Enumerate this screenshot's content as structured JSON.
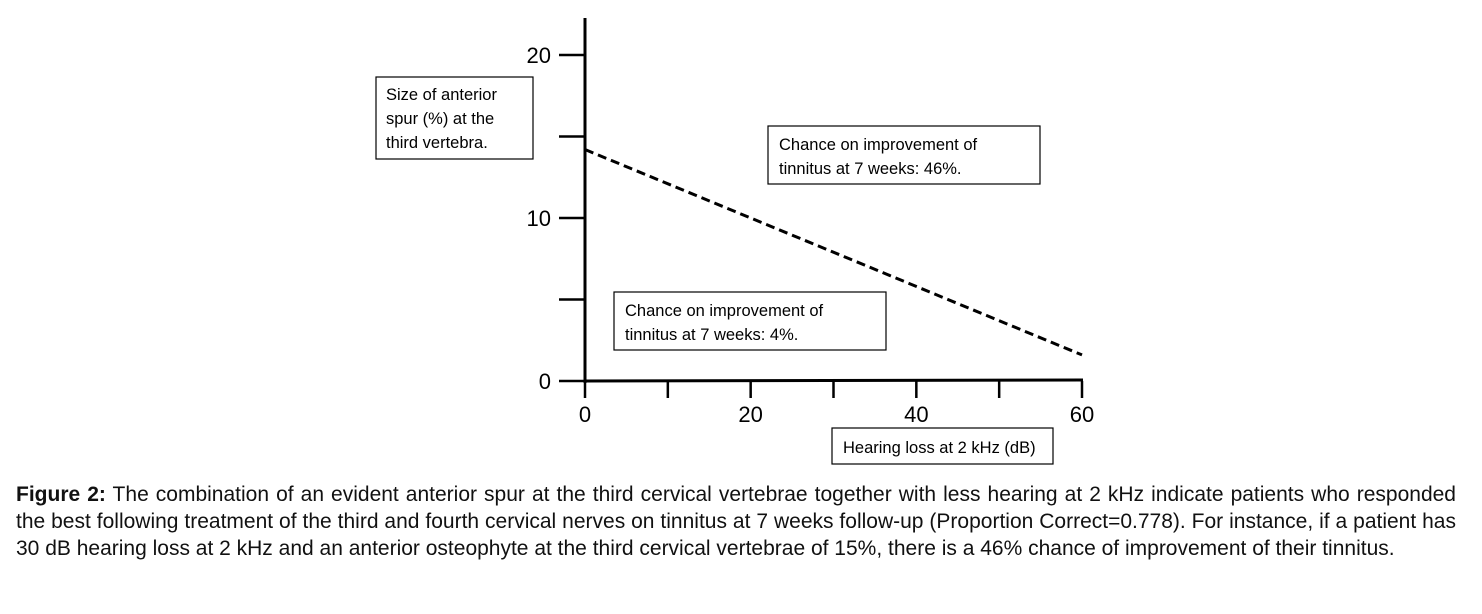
{
  "chart_data": {
    "type": "line",
    "xlabel": "Hearing loss at 2 kHz (dB)",
    "ylabel": "Size of anterior spur (%) at the third vertebra.",
    "xlim": [
      0,
      60
    ],
    "ylim": [
      0,
      20
    ],
    "x_ticks": [
      0,
      10,
      20,
      30,
      40,
      50,
      60
    ],
    "x_tick_labels": [
      "0",
      "",
      "20",
      "",
      "40",
      "",
      "60"
    ],
    "y_ticks": [
      0,
      5,
      10,
      15,
      20
    ],
    "y_tick_labels": [
      "0",
      "",
      "10",
      "",
      "20"
    ],
    "grid": false,
    "series": [
      {
        "style": "dashed",
        "x": [
          0,
          60
        ],
        "y": [
          14.2,
          1.6
        ]
      }
    ],
    "annotations": {
      "upper_region": [
        "Chance on improvement of",
        "tinnitus at 7 weeks: 46%."
      ],
      "lower_region": [
        "Chance on improvement of",
        "tinnitus at 7 weeks: 4%."
      ],
      "ylabel_lines": [
        "Size of anterior",
        "spur (%) at the",
        "third vertebra."
      ]
    }
  },
  "caption": {
    "label": "Figure 2:",
    "text": " The combination of an evident anterior spur at the third cervical vertebrae together with less hearing at 2 kHz indicate patients who responded the best following treatment of the third and fourth cervical nerves on tinnitus at 7 weeks follow-up (Proportion Correct=0.778). For instance, if a patient has 30 dB hearing loss at 2 kHz and an anterior osteophyte at the third cervical vertebrae of 15%, there is a 46% chance of improvement of their tinnitus."
  }
}
